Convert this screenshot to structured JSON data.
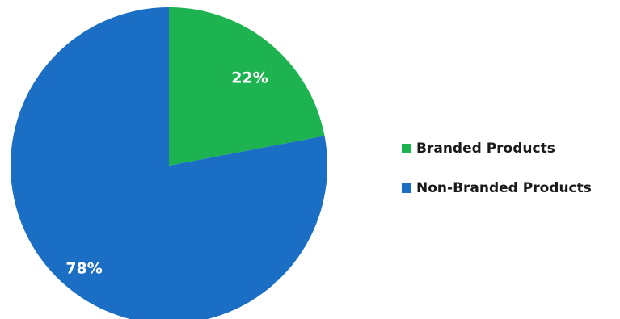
{
  "chart_data": {
    "type": "pie",
    "title": "",
    "slices": [
      {
        "label": "Branded Products",
        "value": 22,
        "display": "22%",
        "color": "#1db350"
      },
      {
        "label": "Non-Branded Products",
        "value": 78,
        "display": "78%",
        "color": "#1a6fc4"
      }
    ],
    "start_angle": "12 o'clock",
    "direction": "clockwise",
    "legend": {
      "position": "right",
      "items": [
        {
          "label": "Branded Products",
          "color": "#1db350"
        },
        {
          "label": "Non-Branded Products",
          "color": "#1a6fc4"
        }
      ]
    }
  }
}
